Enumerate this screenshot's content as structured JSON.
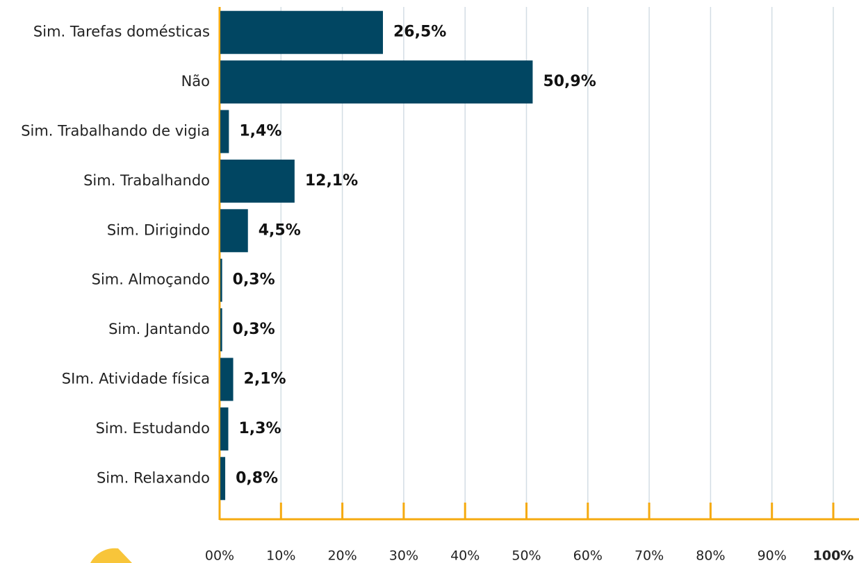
{
  "chart_data": {
    "type": "bar",
    "orientation": "horizontal",
    "categories": [
      "Sim. Tarefas domésticas",
      "Não",
      "Sim. Trabalhando de vigia",
      "Sim. Trabalhando",
      "Sim. Dirigindo",
      "Sim. Almoçando",
      "Sim. Jantando",
      "SIm. Atividade física",
      "Sim. Estudando",
      "Sim. Relaxando"
    ],
    "values": [
      26.5,
      50.9,
      1.4,
      12.1,
      4.5,
      0.3,
      0.3,
      2.1,
      1.3,
      0.8
    ],
    "value_labels": [
      "26,5%",
      "50,9%",
      "1,4%",
      "12,1%",
      "4,5%",
      "0,3%",
      "0,3%",
      "2,1%",
      "1,3%",
      "0,8%"
    ],
    "color": "#014662",
    "axis_color": "#f5aa0f",
    "xlim": [
      0,
      100
    ],
    "xticks": [
      {
        "value": 0,
        "label": "00%"
      },
      {
        "value": 10,
        "label": "10%"
      },
      {
        "value": 20,
        "label": "20%"
      },
      {
        "value": 30,
        "label": "30%"
      },
      {
        "value": 40,
        "label": "40%"
      },
      {
        "value": 50,
        "label": "50%"
      },
      {
        "value": 60,
        "label": "60%"
      },
      {
        "value": 70,
        "label": "70%"
      },
      {
        "value": 80,
        "label": "80%"
      },
      {
        "value": 90,
        "label": "90%"
      },
      {
        "value": 100,
        "label": "100%"
      }
    ],
    "grid": true
  }
}
